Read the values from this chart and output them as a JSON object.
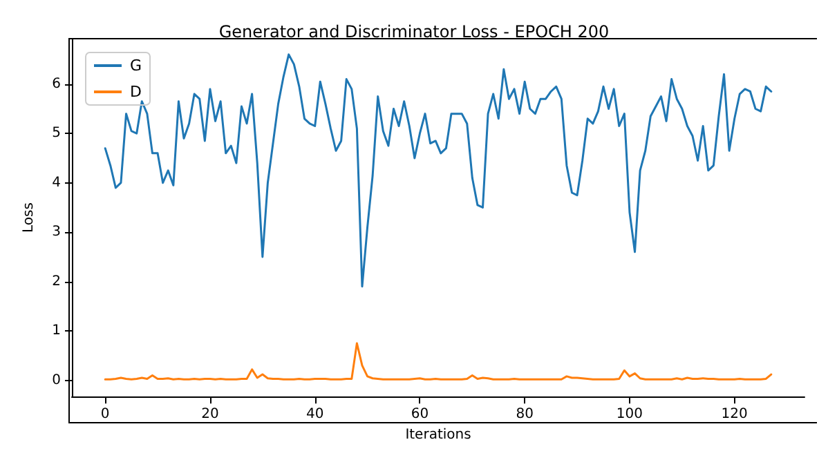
{
  "chart_data": {
    "type": "line",
    "title": "Generator and Discriminator Loss - EPOCH 200",
    "xlabel": "Iterations",
    "ylabel": "Loss",
    "x": [
      0,
      1,
      2,
      3,
      4,
      5,
      6,
      7,
      8,
      9,
      10,
      11,
      12,
      13,
      14,
      15,
      16,
      17,
      18,
      19,
      20,
      21,
      22,
      23,
      24,
      25,
      26,
      27,
      28,
      29,
      30,
      31,
      32,
      33,
      34,
      35,
      36,
      37,
      38,
      39,
      40,
      41,
      42,
      43,
      44,
      45,
      46,
      47,
      48,
      49,
      50,
      51,
      52,
      53,
      54,
      55,
      56,
      57,
      58,
      59,
      60,
      61,
      62,
      63,
      64,
      65,
      66,
      67,
      68,
      69,
      70,
      71,
      72,
      73,
      74,
      75,
      76,
      77,
      78,
      79,
      80,
      81,
      82,
      83,
      84,
      85,
      86,
      87,
      88,
      89,
      90,
      91,
      92,
      93,
      94,
      95,
      96,
      97,
      98,
      99,
      100,
      101,
      102,
      103,
      104,
      105,
      106,
      107,
      108,
      109,
      110,
      111,
      112,
      113,
      114,
      115,
      116,
      117,
      118,
      119,
      120,
      121,
      122,
      123,
      124,
      125,
      126,
      127
    ],
    "series": [
      {
        "name": "G",
        "color": "#1f77b4",
        "values": [
          4.7,
          4.35,
          3.9,
          4.0,
          5.4,
          5.05,
          5.0,
          5.65,
          5.4,
          4.6,
          4.6,
          4.0,
          4.25,
          3.95,
          5.65,
          4.9,
          5.2,
          5.8,
          5.7,
          4.85,
          5.9,
          5.25,
          5.65,
          4.6,
          4.75,
          4.4,
          5.55,
          5.2,
          5.8,
          4.4,
          2.5,
          4.0,
          4.8,
          5.6,
          6.15,
          6.6,
          6.4,
          5.95,
          5.3,
          5.2,
          5.15,
          6.05,
          5.6,
          5.1,
          4.65,
          4.85,
          6.1,
          5.9,
          5.1,
          1.9,
          3.1,
          4.15,
          5.75,
          5.05,
          4.75,
          5.5,
          5.15,
          5.65,
          5.15,
          4.5,
          5.0,
          5.4,
          4.8,
          4.85,
          4.6,
          4.7,
          5.4,
          5.4,
          5.4,
          5.2,
          4.1,
          3.55,
          3.5,
          5.4,
          5.8,
          5.3,
          6.3,
          5.7,
          5.9,
          5.4,
          6.05,
          5.5,
          5.4,
          5.7,
          5.7,
          5.85,
          5.95,
          5.7,
          4.35,
          3.8,
          3.75,
          4.45,
          5.3,
          5.2,
          5.45,
          5.95,
          5.5,
          5.9,
          5.15,
          5.4,
          3.4,
          2.6,
          4.25,
          4.65,
          5.35,
          5.55,
          5.75,
          5.25,
          6.1,
          5.7,
          5.5,
          5.15,
          4.95,
          4.45,
          5.15,
          4.25,
          4.35,
          5.35,
          6.2,
          4.65,
          5.3,
          5.8,
          5.9,
          5.85,
          5.5,
          5.45,
          5.95,
          5.85
        ]
      },
      {
        "name": "D",
        "color": "#ff7f0e",
        "values": [
          0.02,
          0.02,
          0.03,
          0.05,
          0.03,
          0.02,
          0.03,
          0.05,
          0.03,
          0.1,
          0.03,
          0.03,
          0.04,
          0.02,
          0.03,
          0.02,
          0.02,
          0.03,
          0.02,
          0.03,
          0.03,
          0.02,
          0.03,
          0.02,
          0.02,
          0.02,
          0.03,
          0.03,
          0.22,
          0.05,
          0.12,
          0.04,
          0.03,
          0.03,
          0.02,
          0.02,
          0.02,
          0.03,
          0.02,
          0.02,
          0.03,
          0.03,
          0.03,
          0.02,
          0.02,
          0.02,
          0.03,
          0.03,
          0.75,
          0.3,
          0.08,
          0.04,
          0.03,
          0.02,
          0.02,
          0.02,
          0.02,
          0.02,
          0.02,
          0.03,
          0.04,
          0.02,
          0.02,
          0.03,
          0.02,
          0.02,
          0.02,
          0.02,
          0.02,
          0.03,
          0.1,
          0.03,
          0.05,
          0.04,
          0.02,
          0.02,
          0.02,
          0.02,
          0.03,
          0.02,
          0.02,
          0.02,
          0.02,
          0.02,
          0.02,
          0.02,
          0.02,
          0.02,
          0.08,
          0.05,
          0.05,
          0.04,
          0.03,
          0.02,
          0.02,
          0.02,
          0.02,
          0.02,
          0.03,
          0.2,
          0.08,
          0.14,
          0.04,
          0.02,
          0.02,
          0.02,
          0.02,
          0.02,
          0.02,
          0.04,
          0.02,
          0.05,
          0.03,
          0.03,
          0.04,
          0.03,
          0.03,
          0.02,
          0.02,
          0.02,
          0.02,
          0.03,
          0.02,
          0.02,
          0.02,
          0.02,
          0.03,
          0.12
        ]
      }
    ],
    "xlim": [
      -6.35,
      133.35
    ],
    "ylim": [
      -0.33,
      6.92
    ],
    "xticks": [
      0,
      20,
      40,
      60,
      80,
      100,
      120
    ],
    "yticks": [
      0,
      1,
      2,
      3,
      4,
      5,
      6
    ],
    "grid": false,
    "legend": "top left",
    "marker": "none",
    "line_style": "solid"
  }
}
